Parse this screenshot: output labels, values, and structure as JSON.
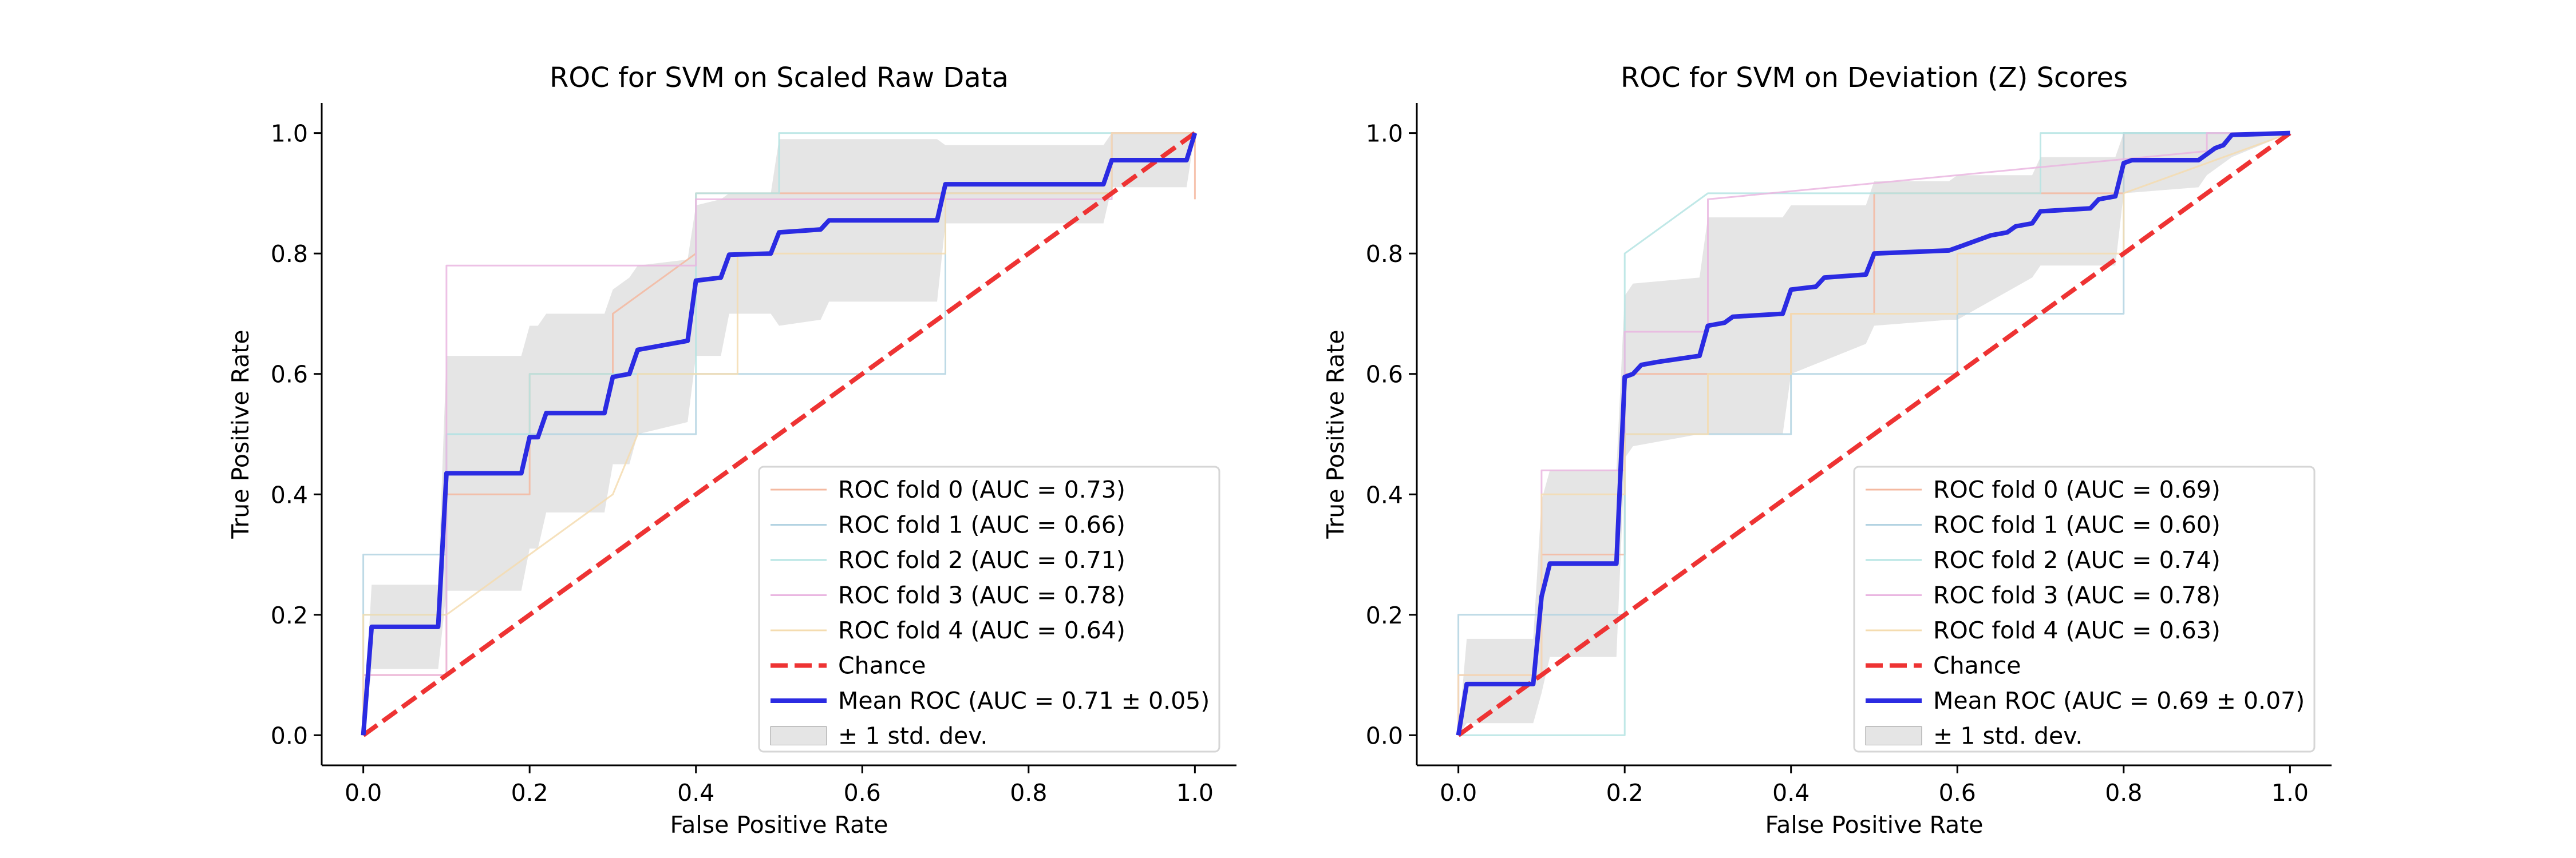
{
  "chart_data": [
    {
      "type": "line",
      "title": "ROC for SVM on Scaled Raw Data",
      "xlabel": "False Positive Rate",
      "ylabel": "True Positive Rate",
      "xlim": [
        -0.05,
        1.05
      ],
      "ylim": [
        -0.05,
        1.05
      ],
      "xticks": [
        "0.0",
        "0.2",
        "0.4",
        "0.6",
        "0.8",
        "1.0"
      ],
      "yticks": [
        "0.0",
        "0.2",
        "0.4",
        "0.6",
        "0.8",
        "1.0"
      ],
      "grid": false,
      "legend_position": "lower right",
      "series": [
        {
          "name": "ROC fold 0 (AUC = 0.73)",
          "color": "#f4b9a0",
          "x": [
            0,
            0,
            0.1,
            0.1,
            0.2,
            0.2,
            0.3,
            0.3,
            0.4,
            0.4,
            0.5,
            0.5,
            0.9,
            0.9,
            1.0,
            1.0
          ],
          "y": [
            0,
            0.1,
            0.1,
            0.4,
            0.4,
            0.6,
            0.6,
            0.7,
            0.8,
            0.9,
            0.9,
            0.9,
            0.9,
            1.0,
            1.0,
            0.89
          ]
        },
        {
          "name": "ROC fold 1 (AUC = 0.66)",
          "color": "#b3d3e2",
          "x": [
            0,
            0,
            0.1,
            0.1,
            0.3,
            0.3,
            0.4,
            0.4,
            0.7,
            0.7,
            0.9,
            0.9,
            1.0
          ],
          "y": [
            0,
            0.3,
            0.3,
            0.5,
            0.5,
            0.5,
            0.5,
            0.6,
            0.6,
            0.9,
            0.9,
            1.0,
            1.0
          ]
        },
        {
          "name": "ROC fold 2 (AUC = 0.71)",
          "color": "#b5e4e3",
          "x": [
            0,
            0,
            0.1,
            0.1,
            0.2,
            0.2,
            0.4,
            0.4,
            0.5,
            0.5,
            0.9,
            0.9,
            1.0
          ],
          "y": [
            0,
            0.2,
            0.2,
            0.5,
            0.5,
            0.6,
            0.6,
            0.9,
            0.9,
            1.0,
            1.0,
            1.0,
            1.0
          ]
        },
        {
          "name": "ROC fold 3 (AUC = 0.78)",
          "color": "#eab6e1",
          "x": [
            0,
            0,
            0.1,
            0.1,
            0.3,
            0.3,
            0.4,
            0.4,
            0.9,
            0.9,
            1.0
          ],
          "y": [
            0,
            0.1,
            0.1,
            0.78,
            0.78,
            0.78,
            0.78,
            0.89,
            0.89,
            1.0,
            1.0
          ]
        },
        {
          "name": "ROC fold 4 (AUC = 0.64)",
          "color": "#f4dcb0",
          "x": [
            0,
            0,
            0.1,
            0.1,
            0.2,
            0.2,
            0.3,
            0.3,
            0.33,
            0.33,
            0.45,
            0.45,
            0.7,
            0.7,
            0.9,
            0.9,
            1.0
          ],
          "y": [
            0,
            0.2,
            0.2,
            0.2,
            0.3,
            0.3,
            0.4,
            0.4,
            0.5,
            0.6,
            0.6,
            0.8,
            0.8,
            0.9,
            0.9,
            1.0,
            1.0
          ]
        },
        {
          "name": "Chance",
          "color": "#ee3333",
          "dashed": true,
          "x": [
            0,
            1
          ],
          "y": [
            0,
            1
          ]
        },
        {
          "name": "Mean ROC (AUC = 0.71 ± 0.05)",
          "color": "#2b2be2",
          "x": [
            0,
            0.01,
            0.09,
            0.1,
            0.19,
            0.2,
            0.21,
            0.22,
            0.29,
            0.3,
            0.32,
            0.33,
            0.39,
            0.4,
            0.43,
            0.44,
            0.49,
            0.5,
            0.55,
            0.56,
            0.69,
            0.7,
            0.89,
            0.9,
            0.99,
            1.0
          ],
          "y": [
            0,
            0.18,
            0.18,
            0.435,
            0.435,
            0.495,
            0.495,
            0.535,
            0.535,
            0.595,
            0.6,
            0.64,
            0.655,
            0.755,
            0.76,
            0.798,
            0.8,
            0.835,
            0.84,
            0.855,
            0.855,
            0.915,
            0.915,
            0.955,
            0.955,
            1.0
          ]
        },
        {
          "name": "± 1 std. dev.",
          "color": "#bdbdbd",
          "band": true,
          "x": [
            0,
            0.01,
            0.09,
            0.1,
            0.19,
            0.2,
            0.21,
            0.22,
            0.29,
            0.3,
            0.32,
            0.33,
            0.39,
            0.4,
            0.43,
            0.44,
            0.49,
            0.5,
            0.55,
            0.56,
            0.69,
            0.7,
            0.89,
            0.9,
            0.99,
            1.0
          ],
          "upper": [
            0,
            0.25,
            0.25,
            0.63,
            0.63,
            0.68,
            0.68,
            0.7,
            0.7,
            0.74,
            0.76,
            0.78,
            0.79,
            0.88,
            0.89,
            0.9,
            0.9,
            0.99,
            0.99,
            0.99,
            0.99,
            0.98,
            0.98,
            1.0,
            1.0,
            1.0
          ],
          "lower": [
            0,
            0.11,
            0.11,
            0.24,
            0.24,
            0.31,
            0.31,
            0.37,
            0.37,
            0.45,
            0.45,
            0.5,
            0.52,
            0.63,
            0.63,
            0.7,
            0.7,
            0.68,
            0.69,
            0.72,
            0.72,
            0.85,
            0.85,
            0.91,
            0.91,
            1.0
          ]
        }
      ]
    },
    {
      "type": "line",
      "title": "ROC for SVM on Deviation (Z) Scores",
      "xlabel": "False Positive Rate",
      "ylabel": "True Positive Rate",
      "xlim": [
        -0.05,
        1.05
      ],
      "ylim": [
        -0.05,
        1.05
      ],
      "xticks": [
        "0.0",
        "0.2",
        "0.4",
        "0.6",
        "0.8",
        "1.0"
      ],
      "yticks": [
        "0.0",
        "0.2",
        "0.4",
        "0.6",
        "0.8",
        "1.0"
      ],
      "grid": false,
      "legend_position": "lower right",
      "series": [
        {
          "name": "ROC fold 0 (AUC = 0.69)",
          "color": "#f4b9a0",
          "x": [
            0,
            0,
            0.1,
            0.1,
            0.2,
            0.2,
            0.4,
            0.4,
            0.5,
            0.5,
            0.7,
            0.7,
            0.8,
            0.8,
            1.0
          ],
          "y": [
            0,
            0.1,
            0.1,
            0.3,
            0.3,
            0.6,
            0.6,
            0.7,
            0.7,
            0.9,
            0.9,
            0.9,
            0.9,
            1.0,
            1.0
          ]
        },
        {
          "name": "ROC fold 1 (AUC = 0.60)",
          "color": "#b3d3e2",
          "x": [
            0,
            0,
            0.2,
            0.2,
            0.4,
            0.4,
            0.6,
            0.6,
            0.8,
            0.8,
            1.0
          ],
          "y": [
            0,
            0.2,
            0.2,
            0.5,
            0.5,
            0.6,
            0.6,
            0.7,
            0.7,
            1.0,
            1.0
          ]
        },
        {
          "name": "ROC fold 2 (AUC = 0.74)",
          "color": "#b5e4e3",
          "x": [
            0,
            0,
            0.2,
            0.2,
            0.3,
            0.7,
            0.7,
            1.0
          ],
          "y": [
            0,
            0,
            0,
            0.8,
            0.9,
            0.9,
            1.0,
            1.0
          ]
        },
        {
          "name": "ROC fold 3 (AUC = 0.78)",
          "color": "#eab6e1",
          "x": [
            0,
            0,
            0.1,
            0.1,
            0.2,
            0.2,
            0.3,
            0.3,
            0.9,
            0.9,
            1.0
          ],
          "y": [
            0,
            0.1,
            0.1,
            0.44,
            0.44,
            0.67,
            0.67,
            0.89,
            0.97,
            1.0,
            1.0
          ]
        },
        {
          "name": "ROC fold 4 (AUC = 0.63)",
          "color": "#f4dcb0",
          "x": [
            0,
            0,
            0.1,
            0.1,
            0.2,
            0.2,
            0.3,
            0.3,
            0.4,
            0.4,
            0.6,
            0.6,
            0.7,
            0.7,
            0.8,
            0.8,
            1.0
          ],
          "y": [
            0,
            0.1,
            0.1,
            0.4,
            0.4,
            0.5,
            0.5,
            0.6,
            0.6,
            0.7,
            0.7,
            0.8,
            0.8,
            0.8,
            0.8,
            0.9,
            1.0
          ]
        },
        {
          "name": "Chance",
          "color": "#ee3333",
          "dashed": true,
          "x": [
            0,
            1
          ],
          "y": [
            0,
            1
          ]
        },
        {
          "name": "Mean ROC (AUC = 0.69 ± 0.07)",
          "color": "#2b2be2",
          "x": [
            0,
            0.01,
            0.09,
            0.1,
            0.11,
            0.19,
            0.2,
            0.21,
            0.22,
            0.24,
            0.29,
            0.3,
            0.32,
            0.33,
            0.39,
            0.4,
            0.43,
            0.44,
            0.49,
            0.5,
            0.59,
            0.6,
            0.63,
            0.64,
            0.66,
            0.67,
            0.69,
            0.7,
            0.76,
            0.77,
            0.79,
            0.8,
            0.81,
            0.89,
            0.9,
            0.91,
            0.92,
            0.93,
            1.0
          ],
          "y": [
            0,
            0.085,
            0.085,
            0.23,
            0.285,
            0.285,
            0.595,
            0.6,
            0.615,
            0.62,
            0.63,
            0.68,
            0.685,
            0.695,
            0.7,
            0.74,
            0.745,
            0.76,
            0.765,
            0.8,
            0.805,
            0.81,
            0.825,
            0.83,
            0.835,
            0.845,
            0.85,
            0.87,
            0.875,
            0.89,
            0.895,
            0.95,
            0.955,
            0.955,
            0.965,
            0.975,
            0.98,
            0.997,
            1.0
          ]
        },
        {
          "name": "± 1 std. dev.",
          "color": "#bdbdbd",
          "band": true,
          "x": [
            0,
            0.01,
            0.09,
            0.1,
            0.11,
            0.19,
            0.2,
            0.21,
            0.29,
            0.3,
            0.39,
            0.4,
            0.49,
            0.5,
            0.59,
            0.6,
            0.69,
            0.7,
            0.79,
            0.8,
            0.89,
            0.9,
            0.93,
            1.0
          ],
          "upper": [
            0,
            0.16,
            0.16,
            0.39,
            0.44,
            0.44,
            0.73,
            0.75,
            0.76,
            0.86,
            0.86,
            0.88,
            0.88,
            0.92,
            0.92,
            0.93,
            0.93,
            0.96,
            0.96,
            1.0,
            1.0,
            1.0,
            1.0,
            1.0
          ],
          "lower": [
            0,
            0.02,
            0.02,
            0.07,
            0.13,
            0.13,
            0.46,
            0.48,
            0.5,
            0.5,
            0.5,
            0.6,
            0.65,
            0.68,
            0.69,
            0.69,
            0.76,
            0.78,
            0.78,
            0.9,
            0.91,
            0.93,
            0.96,
            1.0
          ]
        }
      ]
    }
  ]
}
